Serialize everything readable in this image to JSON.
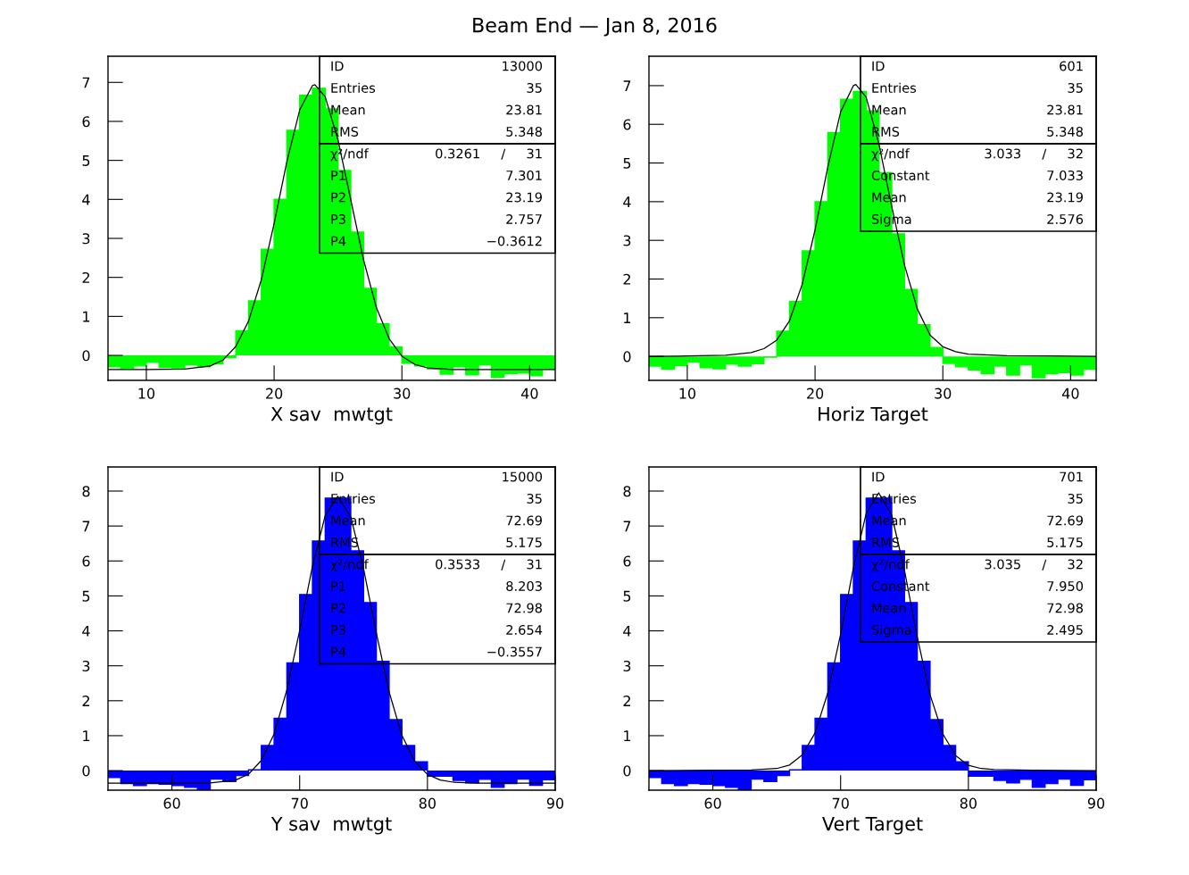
{
  "chart_data": [
    {
      "type": "histogram",
      "title": "Beam End — Jan 8, 2016",
      "xlabel": "X sav  mwtgt",
      "bins": [
        7,
        8,
        9,
        10,
        11,
        12,
        13,
        14,
        15,
        16,
        17,
        18,
        19,
        20,
        21,
        22,
        23,
        24,
        25,
        26,
        27,
        28,
        29,
        30,
        31,
        32,
        33,
        34,
        35,
        36,
        37,
        38,
        39,
        40,
        41,
        42
      ],
      "series": [
        {
          "type": "histogram",
          "color": "#00ff00",
          "values": [
            -0.29,
            -0.35,
            -0.27,
            -0.18,
            -0.31,
            -0.33,
            -0.24,
            -0.29,
            -0.22,
            -0.06,
            0.63,
            1.4,
            2.72,
            4.0,
            5.77,
            6.67,
            6.85,
            6.32,
            4.74,
            3.16,
            1.72,
            0.81,
            0.22,
            -0.2,
            -0.27,
            -0.35,
            -0.48,
            -0.29,
            -0.5,
            -0.24,
            -0.56,
            -0.47,
            -0.45,
            -0.52,
            -0.35
          ]
        },
        {
          "type": "line",
          "color": "#000000",
          "x": [
            7,
            10,
            13,
            15,
            16,
            17,
            18,
            19,
            20,
            21,
            22,
            23,
            23.19,
            24,
            25,
            26,
            27,
            28,
            29,
            30,
            31,
            32,
            34,
            37,
            42
          ],
          "values": [
            -0.36,
            -0.36,
            -0.35,
            -0.27,
            -0.12,
            0.23,
            0.88,
            1.94,
            3.38,
            4.97,
            6.29,
            6.92,
            6.94,
            6.63,
            5.52,
            3.99,
            2.45,
            1.23,
            0.43,
            -0.02,
            -0.23,
            -0.32,
            -0.36,
            -0.36,
            -0.36
          ]
        }
      ],
      "xlim": [
        7,
        42
      ],
      "ylim": [
        -0.64,
        7.67
      ],
      "xticks": [
        10,
        20,
        30,
        40
      ],
      "yticks": [
        0,
        1,
        2,
        3,
        4,
        5,
        6,
        7
      ],
      "grid": false,
      "annotations": [
        "ID\t13000\nEntries\t35\nMean\t23.81\nRMS\t5.348",
        "χ²/ndf\t0.3261\t/\t31\nP1\t7.301\nP2\t23.19\nP3\t2.757\nP4\t−0.3612"
      ]
    },
    {
      "type": "histogram",
      "xlabel": "Horiz Target",
      "bins": [
        7,
        8,
        9,
        10,
        11,
        12,
        13,
        14,
        15,
        16,
        17,
        18,
        19,
        20,
        21,
        22,
        23,
        24,
        25,
        26,
        27,
        28,
        29,
        30,
        31,
        32,
        33,
        34,
        35,
        36,
        37,
        38,
        39,
        40,
        41,
        42
      ],
      "series": [
        {
          "type": "histogram",
          "color": "#00ff00",
          "values": [
            -0.25,
            -0.33,
            -0.24,
            -0.15,
            -0.29,
            -0.32,
            -0.2,
            -0.25,
            -0.19,
            -0.02,
            0.65,
            1.42,
            2.73,
            4.0,
            5.79,
            6.65,
            6.85,
            6.35,
            4.75,
            3.17,
            1.73,
            0.82,
            0.23,
            -0.18,
            -0.27,
            -0.35,
            -0.45,
            -0.25,
            -0.48,
            -0.22,
            -0.55,
            -0.45,
            -0.42,
            -0.48,
            -0.33
          ]
        },
        {
          "type": "line",
          "color": "#000000",
          "x": [
            7,
            10,
            13,
            15,
            16,
            17,
            18,
            19,
            20,
            21,
            22,
            23,
            23.19,
            24,
            25,
            26,
            27,
            28,
            29,
            30,
            31,
            32,
            35,
            38,
            42
          ],
          "values": [
            0,
            0.01,
            0.03,
            0.1,
            0.2,
            0.42,
            0.92,
            1.87,
            3.27,
            4.9,
            6.32,
            7.0,
            7.03,
            6.7,
            5.49,
            3.88,
            2.36,
            1.23,
            0.55,
            0.25,
            0.12,
            0.06,
            0.02,
            0.01,
            0
          ]
        }
      ],
      "xlim": [
        7,
        42
      ],
      "ylim": [
        -0.62,
        7.76
      ],
      "xticks": [
        10,
        20,
        30,
        40
      ],
      "yticks": [
        0,
        1,
        2,
        3,
        4,
        5,
        6,
        7
      ],
      "grid": false,
      "annotations": [
        "ID\t601\nEntries\t35\nMean\t23.81\nRMS\t5.348",
        "χ²/ndf\t3.033\t/\t32\nConstant\t7.033\nMean\t23.19\nSigma\t2.576"
      ]
    },
    {
      "type": "histogram",
      "xlabel": "Y sav  mwtgt",
      "bins": [
        55,
        56,
        57,
        58,
        59,
        60,
        61,
        62,
        63,
        64,
        65,
        66,
        67,
        68,
        69,
        70,
        71,
        72,
        73,
        74,
        75,
        76,
        77,
        78,
        79,
        80,
        81,
        82,
        83,
        84,
        85,
        86,
        87,
        88,
        89,
        90
      ],
      "series": [
        {
          "type": "histogram",
          "color": "#0000ff",
          "values": [
            -0.2,
            -0.37,
            -0.43,
            -0.37,
            -0.39,
            -0.43,
            -0.48,
            -0.55,
            -0.24,
            -0.31,
            -0.14,
            0.02,
            0.72,
            1.5,
            3.08,
            5.04,
            6.57,
            7.8,
            7.8,
            6.29,
            4.81,
            3.13,
            1.46,
            0.72,
            0.25,
            -0.16,
            -0.16,
            -0.28,
            -0.35,
            -0.25,
            -0.48,
            -0.37,
            -0.24,
            -0.42,
            -0.26
          ]
        },
        {
          "type": "line",
          "color": "#000000",
          "x": [
            55,
            60,
            63,
            65,
            66,
            67,
            68,
            69,
            70,
            71,
            72,
            72.98,
            74,
            75,
            76,
            77,
            78,
            79,
            80,
            81,
            82,
            84,
            90
          ],
          "values": [
            -0.36,
            -0.36,
            -0.35,
            -0.27,
            -0.1,
            0.29,
            1.05,
            2.31,
            4.01,
            5.85,
            7.3,
            7.85,
            7.26,
            5.78,
            3.94,
            2.25,
            1.01,
            0.27,
            -0.11,
            -0.27,
            -0.33,
            -0.36,
            -0.36
          ]
        }
      ],
      "xlim": [
        55,
        90
      ],
      "ylim": [
        -0.56,
        8.69
      ],
      "xticks": [
        60,
        70,
        80,
        90
      ],
      "yticks": [
        0,
        1,
        2,
        3,
        4,
        5,
        6,
        7,
        8
      ],
      "grid": false,
      "annotations": [
        "ID\t15000\nEntries\t35\nMean\t72.69\nRMS\t5.175",
        "χ²/ndf\t0.3533\t/\t31\nP1\t8.203\nP2\t72.98\nP3\t2.654\nP4\t−0.3557"
      ]
    },
    {
      "type": "histogram",
      "xlabel": "Vert Target",
      "bins": [
        55,
        56,
        57,
        58,
        59,
        60,
        61,
        62,
        63,
        64,
        65,
        66,
        67,
        68,
        69,
        70,
        71,
        72,
        73,
        74,
        75,
        76,
        77,
        78,
        79,
        80,
        81,
        82,
        83,
        84,
        85,
        86,
        87,
        88,
        89,
        90
      ],
      "series": [
        {
          "type": "histogram",
          "color": "#0000ff",
          "values": [
            -0.2,
            -0.37,
            -0.43,
            -0.37,
            -0.39,
            -0.43,
            -0.48,
            -0.55,
            -0.24,
            -0.31,
            -0.14,
            0.02,
            0.72,
            1.5,
            3.08,
            5.04,
            6.57,
            7.8,
            7.8,
            6.29,
            4.81,
            3.13,
            1.46,
            0.72,
            0.25,
            -0.16,
            -0.16,
            -0.28,
            -0.35,
            -0.25,
            -0.48,
            -0.37,
            -0.24,
            -0.42,
            -0.26
          ]
        },
        {
          "type": "line",
          "color": "#000000",
          "x": [
            55,
            60,
            63,
            65,
            66,
            67,
            68,
            69,
            70,
            71,
            72,
            72.98,
            74,
            75,
            76,
            77,
            78,
            79,
            80,
            81,
            82,
            85,
            90
          ],
          "values": [
            0,
            0.01,
            0.02,
            0.06,
            0.16,
            0.45,
            1.08,
            2.23,
            3.9,
            5.8,
            7.36,
            7.95,
            7.31,
            5.73,
            3.82,
            2.17,
            1.05,
            0.43,
            0.15,
            0.06,
            0.03,
            0.01,
            0
          ]
        }
      ],
      "xlim": [
        55,
        90
      ],
      "ylim": [
        -0.56,
        8.69
      ],
      "xticks": [
        60,
        70,
        80,
        90
      ],
      "yticks": [
        0,
        1,
        2,
        3,
        4,
        5,
        6,
        7,
        8
      ],
      "grid": false,
      "annotations": [
        "ID\t701\nEntries\t35\nMean\t72.69\nRMS\t5.175",
        "χ²/ndf\t3.035\t/\t32\nConstant\t7.950\nMean\t72.98\nSigma\t2.495"
      ]
    }
  ]
}
